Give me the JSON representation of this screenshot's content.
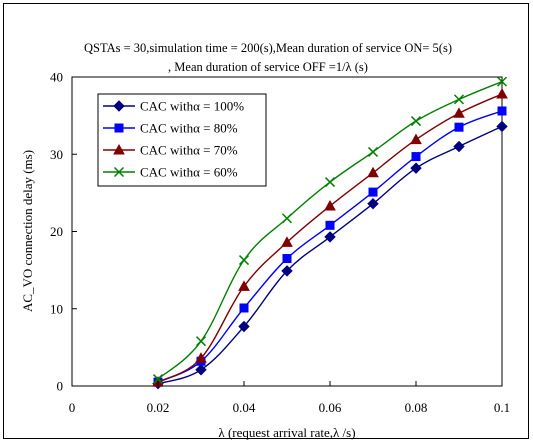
{
  "chart_data": {
    "type": "line",
    "title_line1": "QSTAs = 30,simulation time = 200(s),Mean duration of service ON= 5(s)",
    "title_line2": ", Mean duration of service  OFF =1/λ  (s)",
    "xlabel": "λ  (request arrival rate,λ  /s)",
    "ylabel": "AC_VO connection delay (ms)",
    "xlim": [
      0,
      0.1
    ],
    "ylim": [
      0,
      40
    ],
    "x_ticks": [
      "0",
      "0.02",
      "0.04",
      "0.06",
      "0.08",
      "0.1"
    ],
    "y_ticks": [
      "0",
      "10",
      "20",
      "30",
      "40"
    ],
    "x": [
      0.02,
      0.03,
      0.04,
      0.05,
      0.06,
      0.07,
      0.08,
      0.09,
      0.1
    ],
    "legend_position": "top-left",
    "grid": false,
    "series": [
      {
        "name": "CAC withα  = 100%",
        "color": "#000080",
        "marker": "diamond",
        "values": [
          0.3,
          2.1,
          7.7,
          14.9,
          19.3,
          23.6,
          28.2,
          31.0,
          33.6
        ]
      },
      {
        "name": "CAC withα  = 80%",
        "color": "#0000FF",
        "marker": "square",
        "values": [
          0.5,
          3.2,
          10.1,
          16.5,
          20.8,
          25.1,
          29.7,
          33.5,
          35.6
        ]
      },
      {
        "name": "CAC withα  = 70%",
        "color": "#800000",
        "marker": "triangle",
        "values": [
          0.5,
          3.6,
          12.9,
          18.6,
          23.3,
          27.6,
          31.9,
          35.3,
          37.8
        ]
      },
      {
        "name": "CAC withα  = 60%",
        "color": "#008000",
        "marker": "x",
        "values": [
          0.9,
          5.8,
          16.3,
          21.7,
          26.4,
          30.3,
          34.3,
          37.1,
          39.4
        ]
      }
    ]
  }
}
